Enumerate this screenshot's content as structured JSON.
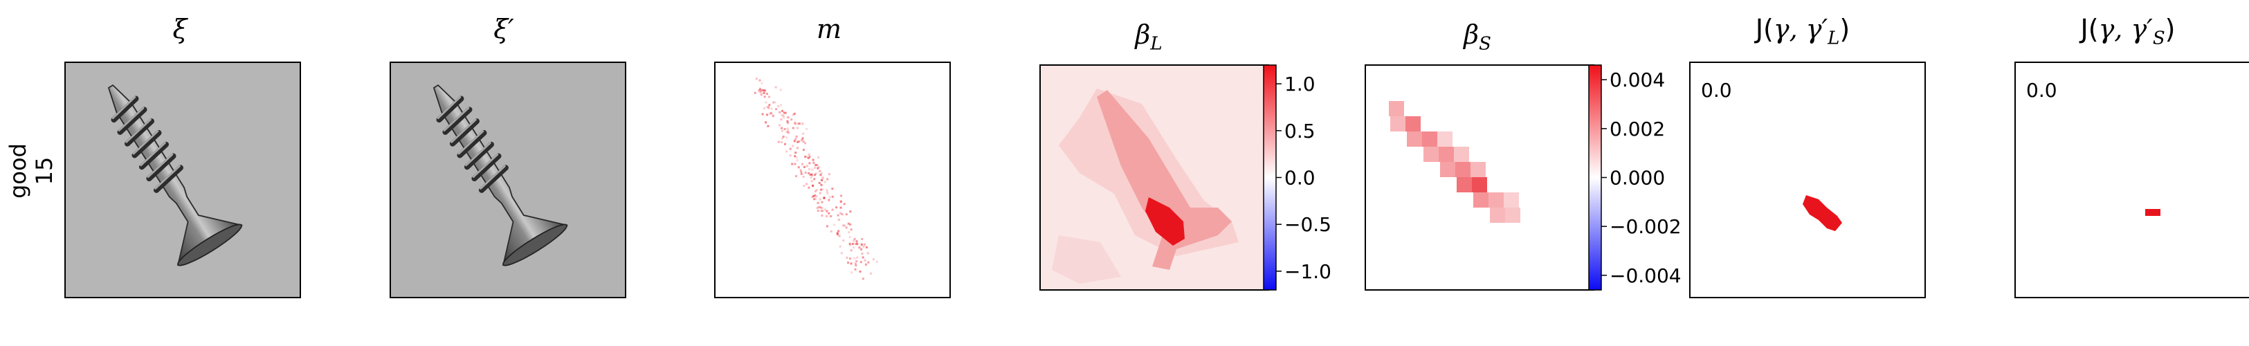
{
  "row_label": {
    "line1": "good",
    "line2": "15"
  },
  "panels": [
    {
      "id": "xi",
      "title": "ξ",
      "title_sub": ""
    },
    {
      "id": "xi_prime",
      "title": "ξ′",
      "title_sub": ""
    },
    {
      "id": "m",
      "title": "m",
      "title_sub": ""
    },
    {
      "id": "beta_L",
      "title": "β",
      "title_sub": "L"
    },
    {
      "id": "beta_S",
      "title": "β",
      "title_sub": "S"
    },
    {
      "id": "J_L",
      "title_prefix": "J(",
      "title_math": "γ, γ′",
      "title_sub": "L",
      "title_suffix": ")",
      "corner_value": "0.0"
    },
    {
      "id": "J_S",
      "title_prefix": "J(",
      "title_math": "γ, γ′",
      "title_sub": "S",
      "title_suffix": ")",
      "corner_value": "0.0"
    }
  ],
  "chart_data": [
    {
      "type": "heatmap",
      "panel": "xi",
      "content": "grayscale photograph of a screw (input image)"
    },
    {
      "type": "heatmap",
      "panel": "xi_prime",
      "content": "grayscale reconstruction of the screw image"
    },
    {
      "type": "heatmap",
      "panel": "m",
      "content": "sparse red map along the screw outline",
      "colormap": "white-red"
    },
    {
      "type": "heatmap",
      "panel": "beta_L",
      "colormap": "bwr",
      "colorbar": {
        "ticks": [
          "1.0",
          "0.5",
          "0.0",
          "−0.5",
          "−1.0"
        ],
        "range": [
          -1.2,
          1.2
        ]
      }
    },
    {
      "type": "heatmap",
      "panel": "beta_S",
      "colormap": "bwr",
      "colorbar": {
        "ticks": [
          "0.004",
          "0.002",
          "0.000",
          "−0.002",
          "−0.004"
        ],
        "range": [
          -0.0046,
          0.0046
        ]
      }
    },
    {
      "type": "heatmap",
      "panel": "J_L",
      "content": "red blob near lower screw shank",
      "corner_value": "0.0"
    },
    {
      "type": "heatmap",
      "panel": "J_S",
      "content": "single small red bar",
      "corner_value": "0.0"
    }
  ],
  "colors": {
    "red": "#e8141d",
    "blue": "#1010f0",
    "frame": "#000000"
  }
}
